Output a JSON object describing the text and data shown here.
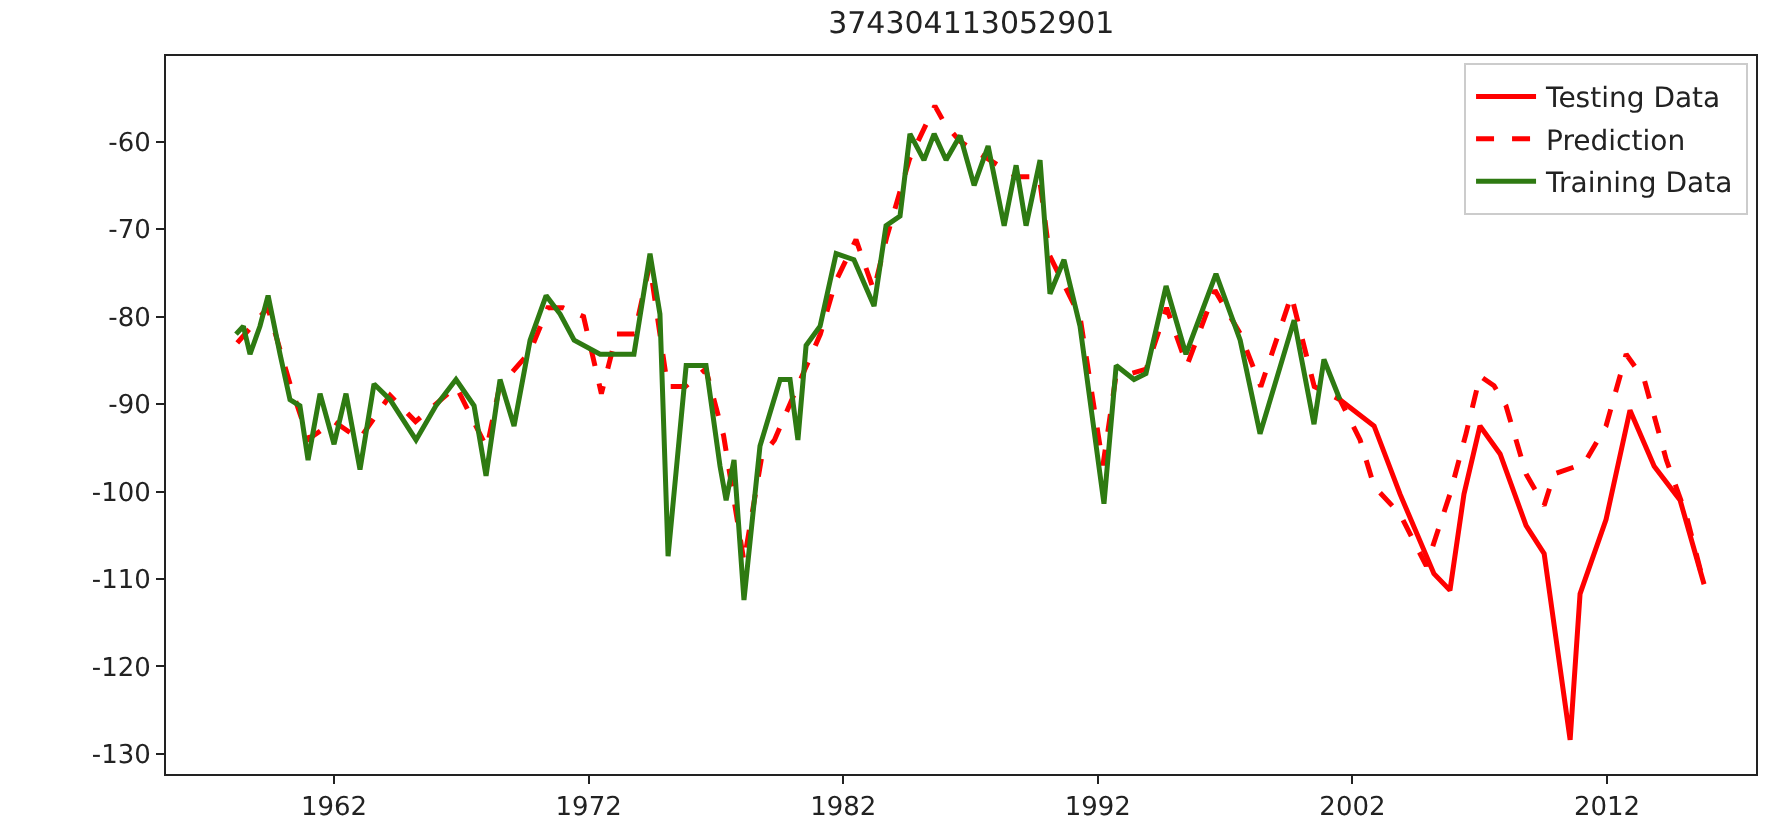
{
  "chart_data": {
    "type": "line",
    "title": "374304113052901",
    "xlim": [
      1955.4,
      2017.85
    ],
    "xticks": [
      1962,
      1972,
      1982,
      1992,
      2002,
      2012
    ],
    "ylim": [
      -132.3,
      -50.2
    ],
    "yticks": [
      -60,
      -70,
      -80,
      -90,
      -100,
      -110,
      -120,
      -130
    ],
    "grid": false,
    "legend": "top right",
    "series": [
      {
        "name": "Testing Data",
        "color": "#ff0000",
        "line_style": "solid",
        "x": [
          2001.51,
          2002.85,
          2003.87,
          2005.2,
          2005.83,
          2006.38,
          2007.01,
          2007.8,
          2008.82,
          2009.53,
          2010.55,
          2010.94,
          2011.96,
          2012.9,
          2013.85,
          2014.87,
          2015.81
        ],
        "values": [
          -89.5,
          -92.5,
          -100.3,
          -109.4,
          -111.3,
          -100.3,
          -92.5,
          -95.7,
          -103.9,
          -107.1,
          -128.4,
          -111.7,
          -103.2,
          -90.7,
          -97.1,
          -101.0,
          -110.6
        ]
      },
      {
        "name": "Prediction",
        "color": "#ff0000",
        "line_style": "dashed",
        "x": [
          1958.2,
          1959.4,
          1960.3,
          1961.0,
          1962.0,
          1963.0,
          1964.2,
          1965.2,
          1966.8,
          1968.0,
          1968.5,
          1969.7,
          1970.4,
          1971.0,
          1971.8,
          1972.5,
          1973.1,
          1973.8,
          1974.4,
          1975.1,
          1975.8,
          1976.6,
          1977.3,
          1978.1,
          1978.8,
          1979.3,
          1980.5,
          1981.1,
          1981.7,
          1982.5,
          1983.2,
          1983.7,
          1984.6,
          1985.6,
          1986.0,
          1986.6,
          1987.7,
          1988.8,
          1989.7,
          1990.1,
          1991.3,
          1992.2,
          1992.7,
          1993.9,
          1994.7,
          1995.5,
          1996.6,
          1997.6,
          1998.4,
          1999.6,
          2000.5,
          2001.51,
          2002.3,
          2002.85,
          2003.87,
          2004.9,
          2005.83,
          2006.46,
          2007.01,
          2007.56,
          2008.03,
          2008.82,
          2009.53,
          2009.92,
          2011.1,
          2011.96,
          2012.75,
          2013.46,
          2014.33,
          2015.1,
          2015.81
        ],
        "values": [
          -83,
          -79,
          -88,
          -94,
          -92,
          -94,
          -89,
          -92,
          -88,
          -95,
          -88,
          -84,
          -79,
          -79,
          -80,
          -88.8,
          -82,
          -82,
          -74,
          -88,
          -88,
          -86,
          -93.6,
          -108,
          -96,
          -94.1,
          -86,
          -82,
          -76,
          -71.2,
          -77,
          -71,
          -62,
          -55.9,
          -58,
          -60,
          -62,
          -64,
          -64,
          -73,
          -80,
          -97,
          -87,
          -86,
          -79,
          -85.6,
          -77,
          -82,
          -88,
          -77.6,
          -88,
          -89.5,
          -94.1,
          -99.4,
          -102.6,
          -108.5,
          -100.3,
          -93.4,
          -86.8,
          -87.9,
          -90.2,
          -98.0,
          -101.6,
          -98.0,
          -96.8,
          -92.5,
          -84.3,
          -87.2,
          -96.4,
          -102.6,
          -110.6
        ]
      },
      {
        "name": "Training Data",
        "color": "#2e7a12",
        "line_style": "solid",
        "x": [
          1958.15,
          1958.44,
          1958.7,
          1959.09,
          1959.41,
          1959.88,
          1960.27,
          1960.66,
          1960.98,
          1961.45,
          1962.0,
          1962.47,
          1963.02,
          1963.57,
          1964.2,
          1965.22,
          1966.0,
          1966.79,
          1967.5,
          1967.97,
          1968.52,
          1969.07,
          1969.7,
          1970.33,
          1970.88,
          1971.43,
          1972.45,
          1973.78,
          1974.41,
          1974.8,
          1975.12,
          1975.83,
          1976.61,
          1977.16,
          1977.4,
          1977.71,
          1978.1,
          1978.73,
          1979.52,
          1979.91,
          1980.22,
          1980.54,
          1981.09,
          1981.72,
          1982.42,
          1983.21,
          1983.68,
          1984.23,
          1984.62,
          1985.17,
          1985.57,
          1986.04,
          1986.59,
          1987.14,
          1987.69,
          1988.32,
          1988.79,
          1989.18,
          1989.73,
          1990.12,
          1990.67,
          1991.3,
          1992.24,
          1992.72,
          1993.42,
          1993.89,
          1994.68,
          1995.46,
          1996.64,
          1997.59,
          1998.37,
          1999.71,
          2000.49,
          2000.88,
          2001.51
        ],
        "values": [
          -82.0,
          -81.1,
          -84.3,
          -81.1,
          -77.6,
          -84.3,
          -89.5,
          -90.2,
          -96.4,
          -88.8,
          -94.6,
          -88.8,
          -97.5,
          -87.7,
          -89.5,
          -94.1,
          -90.2,
          -87.2,
          -90.2,
          -98.2,
          -87.2,
          -92.5,
          -82.7,
          -77.6,
          -79.7,
          -82.7,
          -84.3,
          -84.3,
          -72.8,
          -79.7,
          -107.4,
          -85.6,
          -85.6,
          -97.1,
          -101.0,
          -96.4,
          -112.4,
          -94.8,
          -87.2,
          -87.2,
          -94.1,
          -83.3,
          -81.1,
          -72.8,
          -73.5,
          -78.8,
          -69.6,
          -68.5,
          -59.1,
          -62.1,
          -59.1,
          -62.1,
          -59.3,
          -65.0,
          -60.5,
          -69.6,
          -62.7,
          -69.6,
          -62.1,
          -77.4,
          -73.5,
          -81.1,
          -101.4,
          -85.6,
          -87.2,
          -86.5,
          -76.5,
          -84.3,
          -75.1,
          -82.7,
          -93.4,
          -80.4,
          -92.3,
          -84.9,
          -89.5
        ]
      }
    ]
  }
}
